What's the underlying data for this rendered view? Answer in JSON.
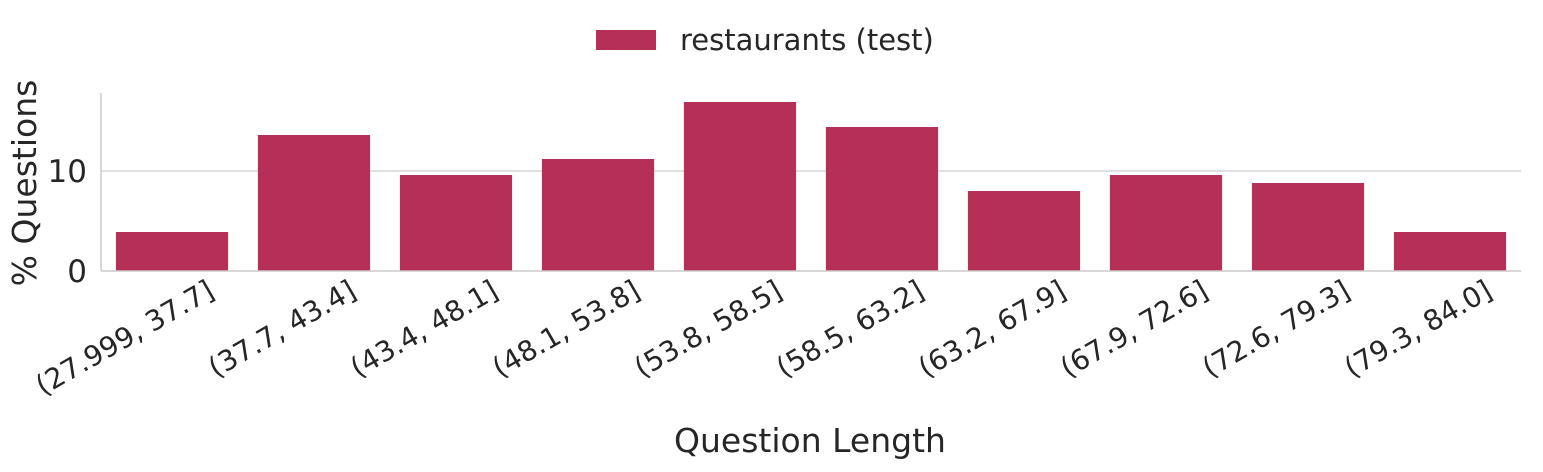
{
  "chart_data": {
    "type": "bar",
    "title": "",
    "xlabel": "Question Length",
    "ylabel": "% Questions",
    "categories": [
      "(27.999, 37.7]",
      "(37.7, 43.4]",
      "(43.4, 48.1]",
      "(48.1, 53.8]",
      "(53.8, 58.5]",
      "(58.5, 63.2]",
      "(63.2, 67.9]",
      "(67.9, 72.6]",
      "(72.6, 79.3]",
      "(79.3, 84.0]"
    ],
    "series": [
      {
        "name": "restaurants (test)",
        "color": "#b52f56",
        "values": [
          3.9,
          13.6,
          9.6,
          11.2,
          16.9,
          14.4,
          8.0,
          9.6,
          8.8,
          3.9
        ]
      }
    ],
    "ylim": [
      0,
      17.8
    ],
    "yticks": [
      0,
      10
    ],
    "grid": "horizontal",
    "legend_position": "top-center",
    "colors": {
      "grid": "#d6d6d6",
      "axis": "#cccccc",
      "text": "#262626"
    }
  }
}
